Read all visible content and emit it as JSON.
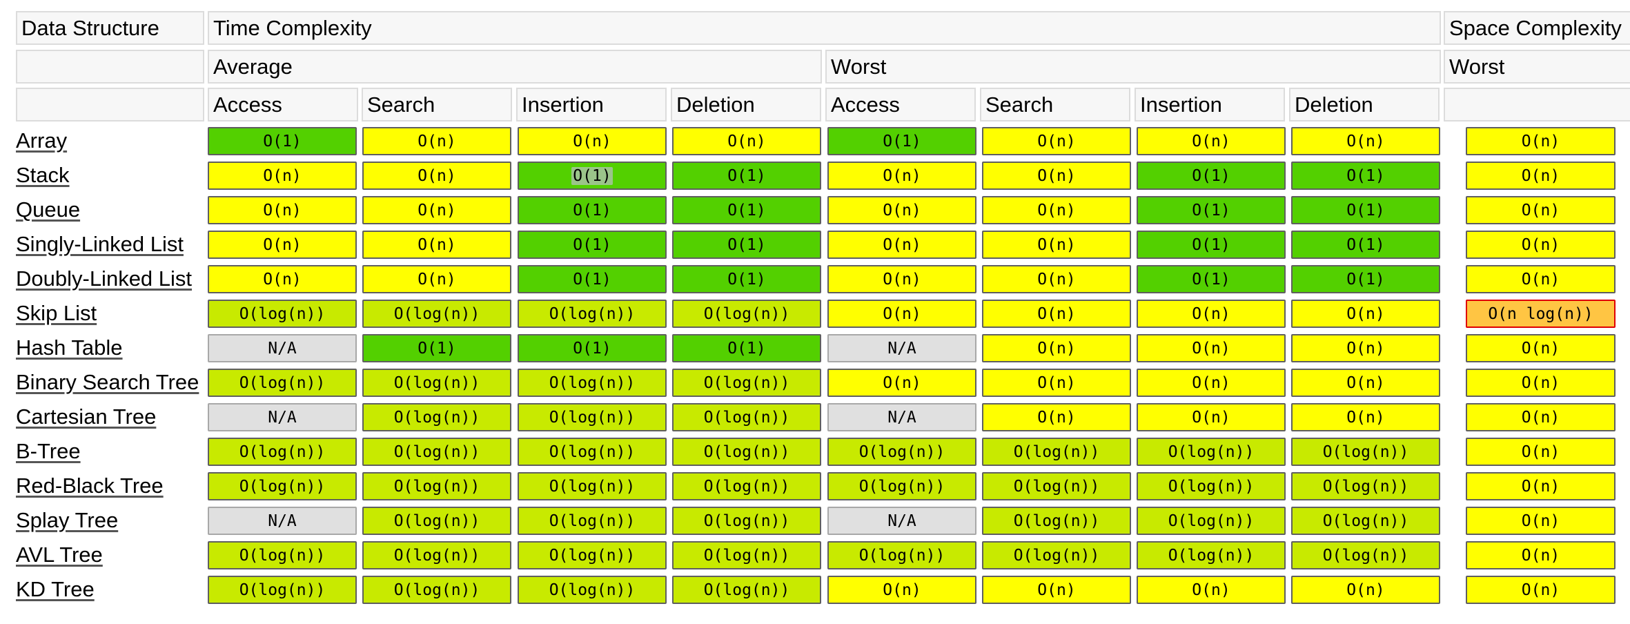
{
  "header": {
    "data_structure": "Data Structure",
    "time_complexity": "Time Complexity",
    "space_complexity": "Space Complexity",
    "average": "Average",
    "worst": "Worst",
    "space_worst": "Worst",
    "ops": [
      "Access",
      "Search",
      "Insertion",
      "Deletion"
    ]
  },
  "colors": {
    "good": "#53d000",
    "fair": "#c8ea00",
    "bad": "#ffff00",
    "horrible": "#ffc543",
    "none": "#e0e0e0",
    "header_bg": "#f7f7f7"
  },
  "rows": [
    {
      "name": "Array",
      "cells": [
        [
          "O(1)",
          "good"
        ],
        [
          "O(n)",
          "bad"
        ],
        [
          "O(n)",
          "bad"
        ],
        [
          "O(n)",
          "bad"
        ],
        [
          "O(1)",
          "good"
        ],
        [
          "O(n)",
          "bad"
        ],
        [
          "O(n)",
          "bad"
        ],
        [
          "O(n)",
          "bad"
        ],
        [
          "O(n)",
          "bad"
        ]
      ]
    },
    {
      "name": "Stack",
      "cells": [
        [
          "O(n)",
          "bad"
        ],
        [
          "O(n)",
          "bad"
        ],
        [
          "O(1)",
          "good"
        ],
        [
          "O(1)",
          "good"
        ],
        [
          "O(n)",
          "bad"
        ],
        [
          "O(n)",
          "bad"
        ],
        [
          "O(1)",
          "good"
        ],
        [
          "O(1)",
          "good"
        ],
        [
          "O(n)",
          "bad"
        ]
      ]
    },
    {
      "name": "Queue",
      "cells": [
        [
          "O(n)",
          "bad"
        ],
        [
          "O(n)",
          "bad"
        ],
        [
          "O(1)",
          "good"
        ],
        [
          "O(1)",
          "good"
        ],
        [
          "O(n)",
          "bad"
        ],
        [
          "O(n)",
          "bad"
        ],
        [
          "O(1)",
          "good"
        ],
        [
          "O(1)",
          "good"
        ],
        [
          "O(n)",
          "bad"
        ]
      ]
    },
    {
      "name": "Singly-Linked List",
      "cells": [
        [
          "O(n)",
          "bad"
        ],
        [
          "O(n)",
          "bad"
        ],
        [
          "O(1)",
          "good"
        ],
        [
          "O(1)",
          "good"
        ],
        [
          "O(n)",
          "bad"
        ],
        [
          "O(n)",
          "bad"
        ],
        [
          "O(1)",
          "good"
        ],
        [
          "O(1)",
          "good"
        ],
        [
          "O(n)",
          "bad"
        ]
      ]
    },
    {
      "name": "Doubly-Linked List",
      "cells": [
        [
          "O(n)",
          "bad"
        ],
        [
          "O(n)",
          "bad"
        ],
        [
          "O(1)",
          "good"
        ],
        [
          "O(1)",
          "good"
        ],
        [
          "O(n)",
          "bad"
        ],
        [
          "O(n)",
          "bad"
        ],
        [
          "O(1)",
          "good"
        ],
        [
          "O(1)",
          "good"
        ],
        [
          "O(n)",
          "bad"
        ]
      ]
    },
    {
      "name": "Skip List",
      "cells": [
        [
          "O(log(n))",
          "fair"
        ],
        [
          "O(log(n))",
          "fair"
        ],
        [
          "O(log(n))",
          "fair"
        ],
        [
          "O(log(n))",
          "fair"
        ],
        [
          "O(n)",
          "bad"
        ],
        [
          "O(n)",
          "bad"
        ],
        [
          "O(n)",
          "bad"
        ],
        [
          "O(n)",
          "bad"
        ],
        [
          "O(n log(n))",
          "horrible"
        ]
      ]
    },
    {
      "name": "Hash Table",
      "cells": [
        [
          "N/A",
          "none"
        ],
        [
          "O(1)",
          "good"
        ],
        [
          "O(1)",
          "good"
        ],
        [
          "O(1)",
          "good"
        ],
        [
          "N/A",
          "none"
        ],
        [
          "O(n)",
          "bad"
        ],
        [
          "O(n)",
          "bad"
        ],
        [
          "O(n)",
          "bad"
        ],
        [
          "O(n)",
          "bad"
        ]
      ]
    },
    {
      "name": "Binary Search Tree",
      "cells": [
        [
          "O(log(n))",
          "fair"
        ],
        [
          "O(log(n))",
          "fair"
        ],
        [
          "O(log(n))",
          "fair"
        ],
        [
          "O(log(n))",
          "fair"
        ],
        [
          "O(n)",
          "bad"
        ],
        [
          "O(n)",
          "bad"
        ],
        [
          "O(n)",
          "bad"
        ],
        [
          "O(n)",
          "bad"
        ],
        [
          "O(n)",
          "bad"
        ]
      ]
    },
    {
      "name": "Cartesian Tree",
      "cells": [
        [
          "N/A",
          "none"
        ],
        [
          "O(log(n))",
          "fair"
        ],
        [
          "O(log(n))",
          "fair"
        ],
        [
          "O(log(n))",
          "fair"
        ],
        [
          "N/A",
          "none"
        ],
        [
          "O(n)",
          "bad"
        ],
        [
          "O(n)",
          "bad"
        ],
        [
          "O(n)",
          "bad"
        ],
        [
          "O(n)",
          "bad"
        ]
      ]
    },
    {
      "name": "B-Tree",
      "cells": [
        [
          "O(log(n))",
          "fair"
        ],
        [
          "O(log(n))",
          "fair"
        ],
        [
          "O(log(n))",
          "fair"
        ],
        [
          "O(log(n))",
          "fair"
        ],
        [
          "O(log(n))",
          "fair"
        ],
        [
          "O(log(n))",
          "fair"
        ],
        [
          "O(log(n))",
          "fair"
        ],
        [
          "O(log(n))",
          "fair"
        ],
        [
          "O(n)",
          "bad"
        ]
      ]
    },
    {
      "name": "Red-Black Tree",
      "cells": [
        [
          "O(log(n))",
          "fair"
        ],
        [
          "O(log(n))",
          "fair"
        ],
        [
          "O(log(n))",
          "fair"
        ],
        [
          "O(log(n))",
          "fair"
        ],
        [
          "O(log(n))",
          "fair"
        ],
        [
          "O(log(n))",
          "fair"
        ],
        [
          "O(log(n))",
          "fair"
        ],
        [
          "O(log(n))",
          "fair"
        ],
        [
          "O(n)",
          "bad"
        ]
      ]
    },
    {
      "name": "Splay Tree",
      "cells": [
        [
          "N/A",
          "none"
        ],
        [
          "O(log(n))",
          "fair"
        ],
        [
          "O(log(n))",
          "fair"
        ],
        [
          "O(log(n))",
          "fair"
        ],
        [
          "N/A",
          "none"
        ],
        [
          "O(log(n))",
          "fair"
        ],
        [
          "O(log(n))",
          "fair"
        ],
        [
          "O(log(n))",
          "fair"
        ],
        [
          "O(n)",
          "bad"
        ]
      ]
    },
    {
      "name": "AVL Tree",
      "cells": [
        [
          "O(log(n))",
          "fair"
        ],
        [
          "O(log(n))",
          "fair"
        ],
        [
          "O(log(n))",
          "fair"
        ],
        [
          "O(log(n))",
          "fair"
        ],
        [
          "O(log(n))",
          "fair"
        ],
        [
          "O(log(n))",
          "fair"
        ],
        [
          "O(log(n))",
          "fair"
        ],
        [
          "O(log(n))",
          "fair"
        ],
        [
          "O(n)",
          "bad"
        ]
      ]
    },
    {
      "name": "KD Tree",
      "cells": [
        [
          "O(log(n))",
          "fair"
        ],
        [
          "O(log(n))",
          "fair"
        ],
        [
          "O(log(n))",
          "fair"
        ],
        [
          "O(log(n))",
          "fair"
        ],
        [
          "O(n)",
          "bad"
        ],
        [
          "O(n)",
          "bad"
        ],
        [
          "O(n)",
          "bad"
        ],
        [
          "O(n)",
          "bad"
        ],
        [
          "O(n)",
          "bad"
        ]
      ]
    }
  ],
  "selection": {
    "row": 1,
    "col": 2
  }
}
